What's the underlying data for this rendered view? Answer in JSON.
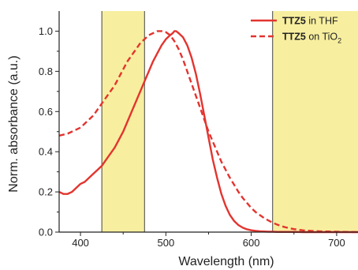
{
  "chart_data": {
    "type": "line",
    "xlabel": "Wavelength (nm)",
    "ylabel": "Norm. absorbance (a.u.)",
    "xlim": [
      375,
      725
    ],
    "ylim": [
      0.0,
      1.1
    ],
    "x_ticks": [
      400,
      500,
      600,
      700
    ],
    "y_ticks": [
      0.0,
      0.2,
      0.4,
      0.6,
      0.8,
      1.0
    ],
    "x_tick_labels": [
      "400",
      "500",
      "600",
      "700"
    ],
    "y_tick_labels": [
      "0.0",
      "0.2",
      "0.4",
      "0.6",
      "0.8",
      "1.0"
    ],
    "grid": false,
    "legend_position": "top-right",
    "highlight_regions": [
      {
        "x_start": 425,
        "x_end": 475,
        "color": "#f7ef9f"
      },
      {
        "x_start": 625,
        "x_end": 725,
        "color": "#f7ef9f"
      }
    ],
    "series": [
      {
        "name_bold": "TTZ5",
        "name_rest": " in THF",
        "name_sub": "",
        "style": "solid",
        "color": "#e3342f",
        "x": [
          375,
          380,
          385,
          390,
          395,
          400,
          405,
          410,
          415,
          420,
          425,
          430,
          435,
          440,
          445,
          450,
          455,
          460,
          465,
          470,
          475,
          480,
          485,
          490,
          495,
          500,
          505,
          508,
          510,
          512,
          515,
          520,
          525,
          530,
          535,
          540,
          545,
          550,
          555,
          560,
          565,
          570,
          575,
          580,
          585,
          590,
          595,
          600,
          605,
          610,
          615,
          620,
          625,
          630,
          640,
          650,
          660,
          680,
          700,
          725
        ],
        "y": [
          0.2,
          0.19,
          0.19,
          0.2,
          0.22,
          0.24,
          0.25,
          0.27,
          0.29,
          0.31,
          0.33,
          0.36,
          0.39,
          0.42,
          0.46,
          0.5,
          0.55,
          0.6,
          0.65,
          0.7,
          0.75,
          0.8,
          0.85,
          0.89,
          0.93,
          0.96,
          0.98,
          0.99,
          1.0,
          1.0,
          0.99,
          0.97,
          0.93,
          0.87,
          0.79,
          0.69,
          0.58,
          0.47,
          0.36,
          0.27,
          0.19,
          0.13,
          0.085,
          0.055,
          0.035,
          0.022,
          0.014,
          0.009,
          0.006,
          0.004,
          0.003,
          0.002,
          0.002,
          0.001,
          0.001,
          0.001,
          0.0,
          0.0,
          0.0,
          0.0
        ]
      },
      {
        "name_bold": "TTZ5",
        "name_rest": " on TiO",
        "name_sub": "2",
        "style": "dashed",
        "color": "#e3342f",
        "x": [
          375,
          380,
          385,
          390,
          395,
          400,
          405,
          410,
          415,
          420,
          425,
          430,
          435,
          440,
          445,
          450,
          455,
          460,
          465,
          470,
          475,
          480,
          485,
          490,
          495,
          500,
          505,
          510,
          515,
          520,
          525,
          530,
          535,
          540,
          545,
          550,
          555,
          560,
          565,
          570,
          575,
          580,
          585,
          590,
          595,
          600,
          605,
          610,
          615,
          620,
          625,
          630,
          635,
          640,
          645,
          650,
          655,
          660,
          670,
          680,
          690,
          700,
          710,
          725
        ],
        "y": [
          0.48,
          0.485,
          0.49,
          0.5,
          0.51,
          0.52,
          0.54,
          0.56,
          0.58,
          0.61,
          0.64,
          0.67,
          0.7,
          0.73,
          0.77,
          0.81,
          0.85,
          0.88,
          0.91,
          0.94,
          0.96,
          0.98,
          0.99,
          1.0,
          1.0,
          0.995,
          0.98,
          0.95,
          0.91,
          0.86,
          0.8,
          0.74,
          0.68,
          0.62,
          0.56,
          0.5,
          0.45,
          0.4,
          0.35,
          0.31,
          0.27,
          0.235,
          0.2,
          0.17,
          0.145,
          0.12,
          0.1,
          0.085,
          0.07,
          0.058,
          0.047,
          0.038,
          0.03,
          0.024,
          0.019,
          0.015,
          0.012,
          0.009,
          0.006,
          0.004,
          0.003,
          0.002,
          0.001,
          0.0
        ]
      }
    ]
  }
}
